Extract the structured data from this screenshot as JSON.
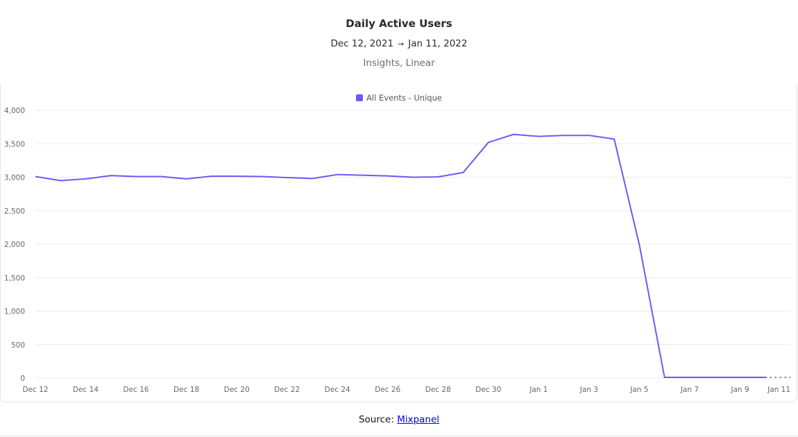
{
  "header": {
    "title": "Daily Active Users",
    "date_start": "Dec 12, 2021",
    "arrow": "→",
    "date_end": "Jan 11, 2022",
    "subtitle": "Insights, Linear"
  },
  "footer": {
    "source_prefix": "Source:",
    "source_link": "Mixpanel"
  },
  "colors": {
    "series": "#7256f5",
    "grid": "#ebebeb",
    "tick_text": "#666666"
  },
  "chart_data": {
    "type": "line",
    "title": "",
    "xlabel": "",
    "ylabel": "",
    "ylim": [
      0,
      4000
    ],
    "yticks": [
      0,
      500,
      1000,
      1500,
      2000,
      2500,
      3000,
      3500,
      4000
    ],
    "ytick_labels": [
      "0",
      "500",
      "1,000",
      "1,500",
      "2,000",
      "2,500",
      "3,000",
      "3,500",
      "4,000"
    ],
    "xtick_labels": [
      "Dec 12",
      "Dec 14",
      "Dec 16",
      "Dec 18",
      "Dec 20",
      "Dec 22",
      "Dec 24",
      "Dec 26",
      "Dec 28",
      "Dec 30",
      "Jan 1",
      "Jan 3",
      "Jan 5",
      "Jan 7",
      "Jan 9",
      "Jan 11"
    ],
    "grid": true,
    "legend_position": "top-center",
    "categories": [
      "Dec 12",
      "Dec 13",
      "Dec 14",
      "Dec 15",
      "Dec 16",
      "Dec 17",
      "Dec 18",
      "Dec 19",
      "Dec 20",
      "Dec 21",
      "Dec 22",
      "Dec 23",
      "Dec 24",
      "Dec 25",
      "Dec 26",
      "Dec 27",
      "Dec 28",
      "Dec 29",
      "Dec 30",
      "Dec 31",
      "Jan 1",
      "Jan 2",
      "Jan 3",
      "Jan 4",
      "Jan 5",
      "Jan 6",
      "Jan 7",
      "Jan 8",
      "Jan 9",
      "Jan 10",
      "Jan 11"
    ],
    "series": [
      {
        "name": "All Events - Unique",
        "values": [
          3010,
          2950,
          2975,
          3025,
          3010,
          3010,
          2975,
          3015,
          3015,
          3010,
          2995,
          2980,
          3040,
          3030,
          3020,
          3000,
          3005,
          3070,
          3520,
          3640,
          3610,
          3625,
          3625,
          3570,
          1990,
          10,
          10,
          10,
          10,
          10,
          10
        ],
        "partial_from_index": 29
      }
    ]
  }
}
